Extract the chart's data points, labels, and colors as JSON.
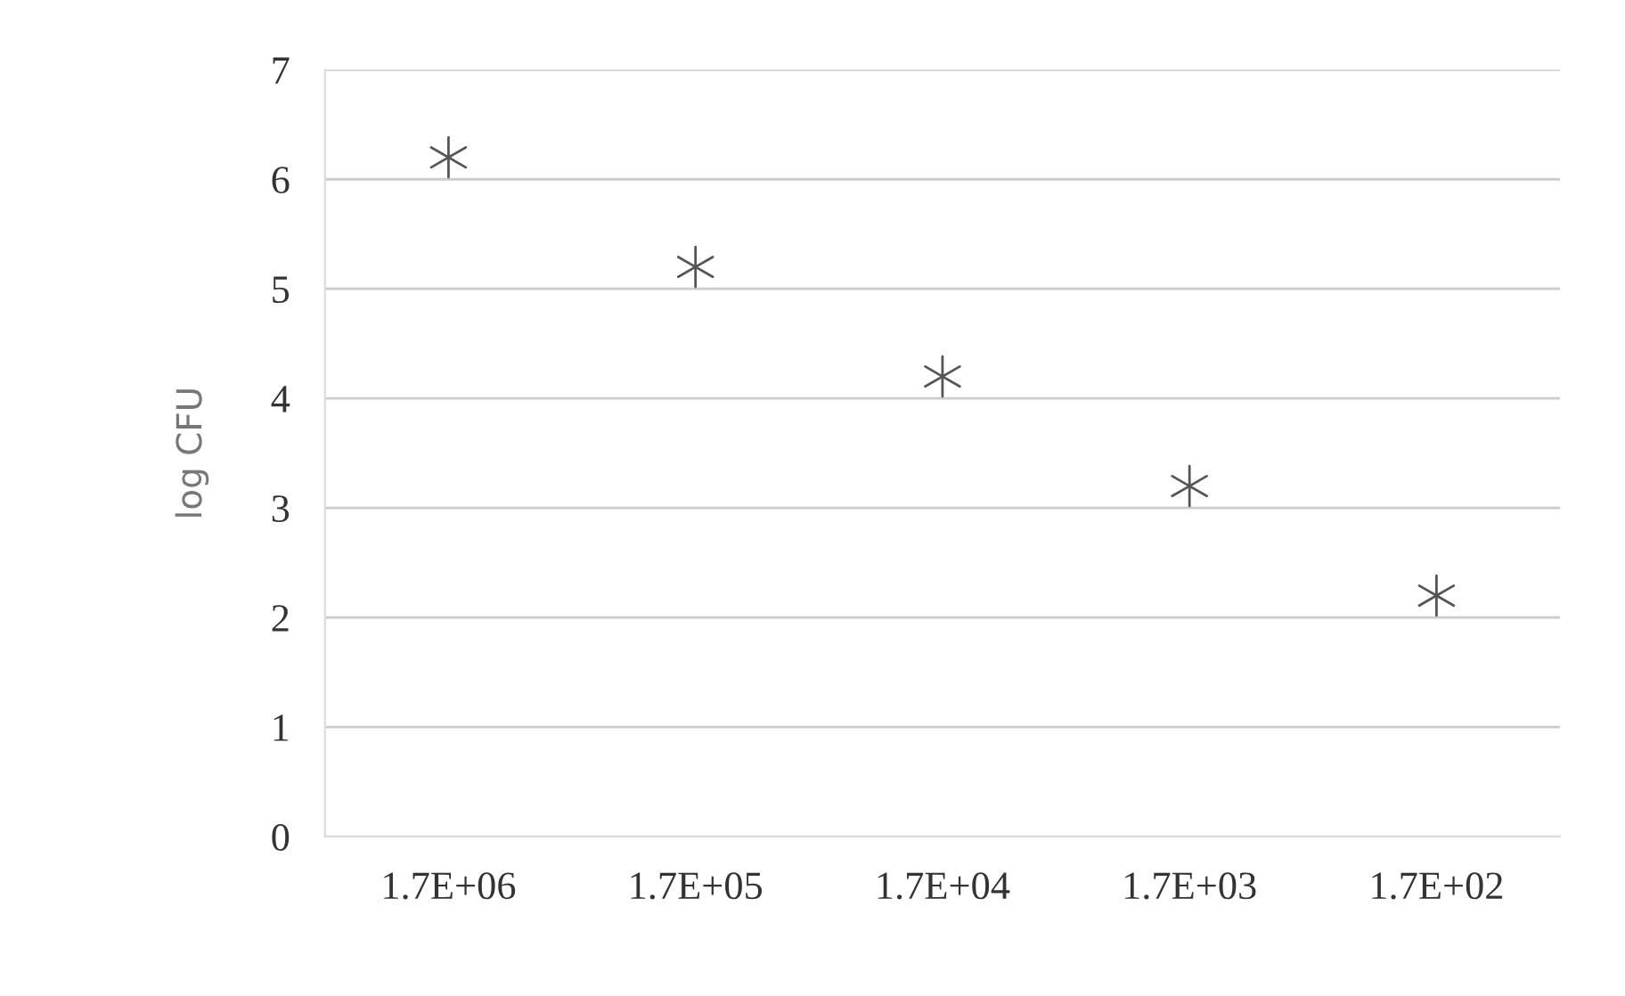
{
  "chart_data": {
    "type": "scatter",
    "ylabel": "log CFU",
    "categories": [
      "1.7E+06",
      "1.7E+05",
      "1.7E+04",
      "1.7E+03",
      "1.7E+02"
    ],
    "series": [
      {
        "color": "#555555",
        "values": [
          6.2,
          5.2,
          4.2,
          3.2,
          2.2
        ]
      }
    ],
    "ylim": [
      0,
      7
    ],
    "yticks": [
      0,
      1,
      2,
      3,
      4,
      5,
      6,
      7
    ],
    "grid": "y",
    "marker": "cross",
    "legend": false
  }
}
